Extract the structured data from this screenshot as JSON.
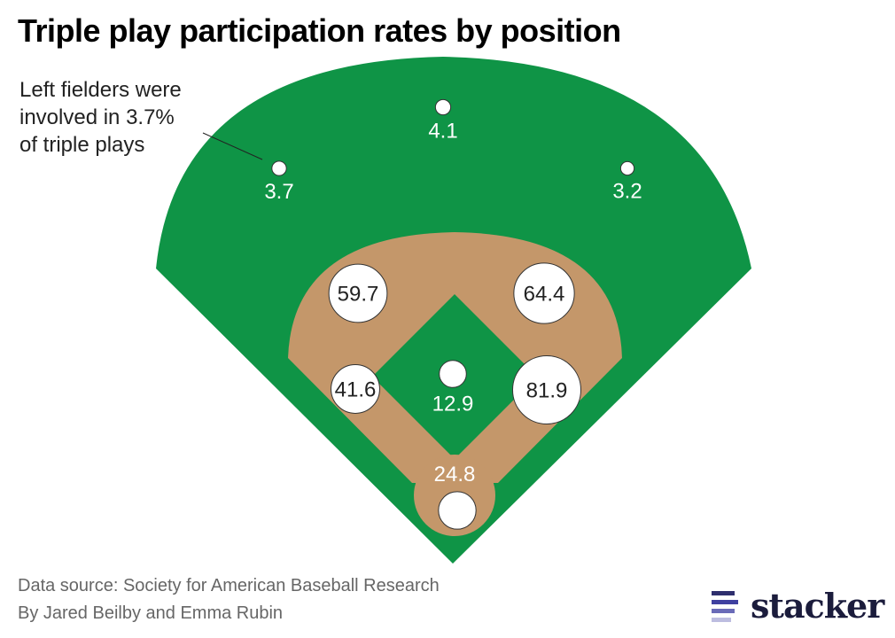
{
  "title": "Triple play participation rates by position",
  "annotation": {
    "lines": [
      "Left fielders were",
      "involved in 3.7%",
      "of triple plays"
    ]
  },
  "footer": {
    "source": "Data source: Society for American Baseball Research",
    "byline": "By Jared Beilby and Emma Rubin"
  },
  "logo": {
    "text": "stacker",
    "bar_colors": [
      "#2e2f6e",
      "#3f40a0",
      "#6a6bb8",
      "#bdbde0"
    ]
  },
  "colors": {
    "grass": "#0f9446",
    "dirt": "#c4976a",
    "bubble": "#ffffff",
    "bubble_stroke": "#333333"
  },
  "chart_data": {
    "type": "bubble-diagram",
    "title": "Triple play participation rates by position",
    "unit": "% of triple plays",
    "positions": [
      {
        "key": "LF",
        "name": "Left field",
        "value": 3.7,
        "label": "3.7",
        "label_inside": false
      },
      {
        "key": "CF",
        "name": "Center field",
        "value": 4.1,
        "label": "4.1",
        "label_inside": false
      },
      {
        "key": "RF",
        "name": "Right field",
        "value": 3.2,
        "label": "3.2",
        "label_inside": false
      },
      {
        "key": "SS",
        "name": "Shortstop",
        "value": 59.7,
        "label": "59.7",
        "label_inside": true
      },
      {
        "key": "2B",
        "name": "Second base",
        "value": 64.4,
        "label": "64.4",
        "label_inside": true
      },
      {
        "key": "3B",
        "name": "Third base",
        "value": 41.6,
        "label": "41.6",
        "label_inside": true
      },
      {
        "key": "1B",
        "name": "First base",
        "value": 81.9,
        "label": "81.9",
        "label_inside": true
      },
      {
        "key": "P",
        "name": "Pitcher",
        "value": 12.9,
        "label": "12.9",
        "label_inside": false
      },
      {
        "key": "C",
        "name": "Catcher",
        "value": 24.8,
        "label": "24.8",
        "label_inside": false
      }
    ]
  }
}
